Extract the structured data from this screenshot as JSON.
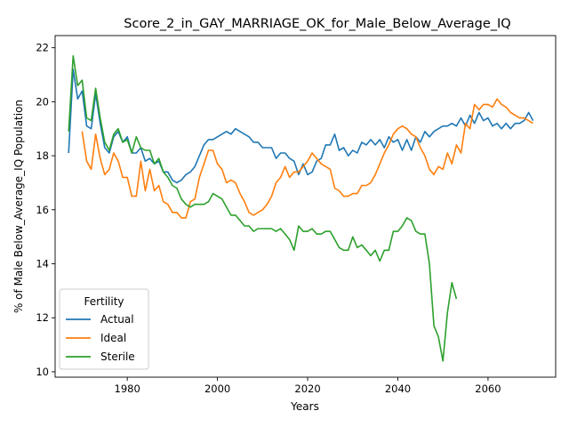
{
  "chart_data": {
    "type": "line",
    "title": "Score_2_in_GAY_MARRIAGE_OK_for_Male_Below_Average_IQ",
    "xlabel": "Years",
    "ylabel": "% of Male Below_Average_IQ Population",
    "xlim": [
      1964,
      2075
    ],
    "ylim": [
      9.8,
      22.45
    ],
    "xticks": [
      1980,
      2000,
      2020,
      2040,
      2060
    ],
    "yticks": [
      10,
      12,
      14,
      16,
      18,
      20,
      22
    ],
    "grid": false,
    "legend": {
      "title": "Fertility",
      "placement": "lower-left"
    },
    "series": [
      {
        "name": "Actual",
        "color": "#1f77b4",
        "x": [
          1967,
          1968,
          1969,
          1970,
          1971,
          1972,
          1973,
          1974,
          1975,
          1976,
          1977,
          1978,
          1979,
          1980,
          1981,
          1982,
          1983,
          1984,
          1985,
          1986,
          1987,
          1988,
          1989,
          1990,
          1991,
          1992,
          1993,
          1994,
          1995,
          1996,
          1997,
          1998,
          1999,
          2000,
          2001,
          2002,
          2003,
          2004,
          2005,
          2006,
          2007,
          2008,
          2009,
          2010,
          2011,
          2012,
          2013,
          2014,
          2015,
          2016,
          2017,
          2018,
          2019,
          2020,
          2021,
          2022,
          2023,
          2024,
          2025,
          2026,
          2027,
          2028,
          2029,
          2030,
          2031,
          2032,
          2033,
          2034,
          2035,
          2036,
          2037,
          2038,
          2039,
          2040,
          2041,
          2042,
          2043,
          2044,
          2045,
          2046,
          2047,
          2048,
          2049,
          2050,
          2051,
          2052,
          2053,
          2054,
          2055,
          2056,
          2057,
          2058,
          2059,
          2060,
          2061,
          2062,
          2063,
          2064,
          2065,
          2066,
          2067,
          2068,
          2069,
          2070
        ],
        "y": [
          18.1,
          21.2,
          20.1,
          20.4,
          19.1,
          19.0,
          20.3,
          19.2,
          18.3,
          18.1,
          18.7,
          18.9,
          18.5,
          18.7,
          18.1,
          18.1,
          18.3,
          17.8,
          17.9,
          17.7,
          17.8,
          17.4,
          17.4,
          17.1,
          17.0,
          17.1,
          17.3,
          17.4,
          17.6,
          18.0,
          18.4,
          18.6,
          18.6,
          18.7,
          18.8,
          18.9,
          18.8,
          19.0,
          18.9,
          18.8,
          18.7,
          18.5,
          18.5,
          18.3,
          18.3,
          18.3,
          17.9,
          18.1,
          18.1,
          17.9,
          17.8,
          17.3,
          17.7,
          17.3,
          17.4,
          17.8,
          17.9,
          18.4,
          18.4,
          18.8,
          18.2,
          18.3,
          18.0,
          18.2,
          18.1,
          18.5,
          18.4,
          18.6,
          18.4,
          18.6,
          18.3,
          18.7,
          18.5,
          18.6,
          18.2,
          18.6,
          18.2,
          18.7,
          18.5,
          18.9,
          18.7,
          18.9,
          19.0,
          19.1,
          19.1,
          19.2,
          19.1,
          19.4,
          19.1,
          19.5,
          19.2,
          19.6,
          19.3,
          19.4,
          19.1,
          19.2,
          19.0,
          19.2,
          19.0,
          19.2,
          19.2,
          19.3,
          19.6,
          19.3
        ]
      },
      {
        "name": "Ideal",
        "color": "#ff7f0e",
        "x": [
          1970,
          1971,
          1972,
          1973,
          1974,
          1975,
          1976,
          1977,
          1978,
          1979,
          1980,
          1981,
          1982,
          1983,
          1984,
          1985,
          1986,
          1987,
          1988,
          1989,
          1990,
          1991,
          1992,
          1993,
          1994,
          1995,
          1996,
          1997,
          1998,
          1999,
          2000,
          2001,
          2002,
          2003,
          2004,
          2005,
          2006,
          2007,
          2008,
          2009,
          2010,
          2011,
          2012,
          2013,
          2014,
          2015,
          2016,
          2017,
          2018,
          2019,
          2020,
          2021,
          2022,
          2023,
          2024,
          2025,
          2026,
          2027,
          2028,
          2029,
          2030,
          2031,
          2032,
          2033,
          2034,
          2035,
          2036,
          2037,
          2038,
          2039,
          2040,
          2041,
          2042,
          2043,
          2044,
          2045,
          2046,
          2047,
          2048,
          2049,
          2050,
          2051,
          2052,
          2053,
          2054,
          2055,
          2056,
          2057,
          2058,
          2059,
          2060,
          2061,
          2062,
          2063,
          2064,
          2065,
          2066,
          2067,
          2068,
          2069,
          2070
        ],
        "y": [
          18.9,
          17.8,
          17.5,
          18.8,
          17.9,
          17.3,
          17.5,
          18.1,
          17.8,
          17.2,
          17.2,
          16.5,
          16.5,
          17.8,
          16.7,
          17.5,
          16.7,
          16.9,
          16.3,
          16.2,
          15.9,
          15.9,
          15.7,
          15.7,
          16.3,
          16.4,
          17.2,
          17.7,
          18.2,
          18.2,
          17.7,
          17.5,
          17.0,
          17.1,
          17.0,
          16.6,
          16.3,
          15.9,
          15.8,
          15.9,
          16.0,
          16.2,
          16.5,
          17.0,
          17.2,
          17.6,
          17.2,
          17.4,
          17.4,
          17.6,
          17.8,
          18.1,
          17.9,
          17.7,
          17.6,
          17.5,
          16.8,
          16.7,
          16.5,
          16.5,
          16.6,
          16.6,
          16.9,
          16.9,
          17.0,
          17.3,
          17.7,
          18.1,
          18.4,
          18.8,
          19.0,
          19.1,
          19.0,
          18.8,
          18.7,
          18.3,
          18.0,
          17.5,
          17.3,
          17.6,
          17.5,
          18.1,
          17.7,
          18.4,
          18.1,
          19.2,
          19.0,
          19.9,
          19.7,
          19.9,
          19.9,
          19.8,
          20.1,
          19.9,
          19.8,
          19.6,
          19.5,
          19.4,
          19.4,
          19.3,
          19.2
        ]
      },
      {
        "name": "Sterile",
        "color": "#2ca02c",
        "x": [
          1967,
          1968,
          1969,
          1970,
          1971,
          1972,
          1973,
          1974,
          1975,
          1976,
          1977,
          1978,
          1979,
          1980,
          1981,
          1982,
          1983,
          1984,
          1985,
          1986,
          1987,
          1988,
          1989,
          1990,
          1991,
          1992,
          1993,
          1994,
          1995,
          1996,
          1997,
          1998,
          1999,
          2000,
          2001,
          2002,
          2003,
          2004,
          2005,
          2006,
          2007,
          2008,
          2009,
          2010,
          2011,
          2012,
          2013,
          2014,
          2015,
          2016,
          2017,
          2018,
          2019,
          2020,
          2021,
          2022,
          2023,
          2024,
          2025,
          2026,
          2027,
          2028,
          2029,
          2030,
          2031,
          2032,
          2033,
          2034,
          2035,
          2036,
          2037,
          2038,
          2039,
          2040,
          2041,
          2042,
          2043,
          2044,
          2045,
          2046,
          2047,
          2048,
          2049,
          2050,
          2051,
          2052,
          2053
        ],
        "y": [
          18.9,
          21.7,
          20.6,
          20.8,
          19.4,
          19.3,
          20.5,
          19.4,
          18.5,
          18.2,
          18.8,
          19.0,
          18.5,
          18.6,
          18.1,
          18.7,
          18.3,
          18.2,
          18.2,
          17.7,
          17.9,
          17.4,
          17.2,
          16.9,
          16.8,
          16.4,
          16.2,
          16.1,
          16.2,
          16.2,
          16.2,
          16.3,
          16.6,
          16.5,
          16.4,
          16.1,
          15.8,
          15.8,
          15.6,
          15.4,
          15.4,
          15.2,
          15.3,
          15.3,
          15.3,
          15.3,
          15.2,
          15.3,
          15.1,
          14.9,
          14.5,
          15.4,
          15.2,
          15.2,
          15.3,
          15.1,
          15.1,
          15.2,
          15.2,
          14.9,
          14.6,
          14.5,
          14.5,
          15.0,
          14.6,
          14.7,
          14.5,
          14.3,
          14.5,
          14.1,
          14.5,
          14.5,
          15.2,
          15.2,
          15.4,
          15.7,
          15.6,
          15.2,
          15.1,
          15.1,
          14.0,
          11.7,
          11.3,
          10.4,
          12.2,
          13.3,
          12.7
        ]
      }
    ]
  }
}
